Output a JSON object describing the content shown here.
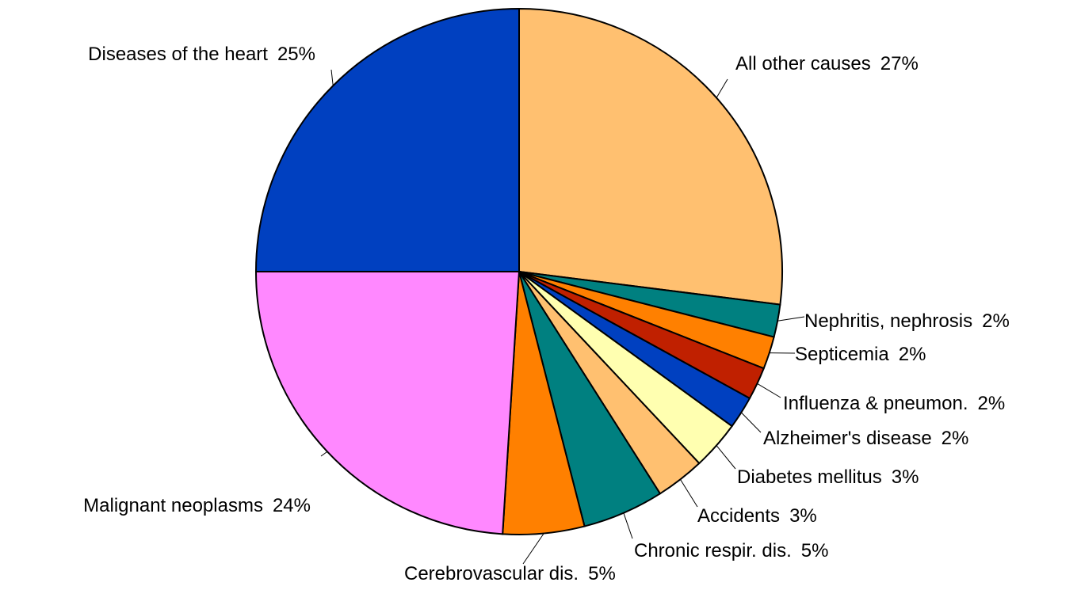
{
  "chart_data": {
    "type": "pie",
    "categories": [
      "All other causes",
      "Nephritis, nephrosis",
      "Septicemia",
      "Influenza & pneumon.",
      "Alzheimer's disease",
      "Diabetes mellitus",
      "Accidents",
      "Chronic respir. dis.",
      "Cerebrovascular dis.",
      "Malignant neoplasms",
      "Diseases of the heart"
    ],
    "values": [
      27,
      2,
      2,
      2,
      2,
      3,
      3,
      5,
      5,
      24,
      25
    ],
    "value_labels": [
      "27%",
      "2%",
      "2%",
      "2%",
      "2%",
      "3%",
      "3%",
      "5%",
      "5%",
      "24%",
      "25%"
    ],
    "colors": [
      "#ffc070",
      "#008080",
      "#ff8000",
      "#c02000",
      "#0040c0",
      "#ffffb0",
      "#ffc070",
      "#008080",
      "#ff8000",
      "#ff88ff",
      "#0040c0"
    ]
  }
}
